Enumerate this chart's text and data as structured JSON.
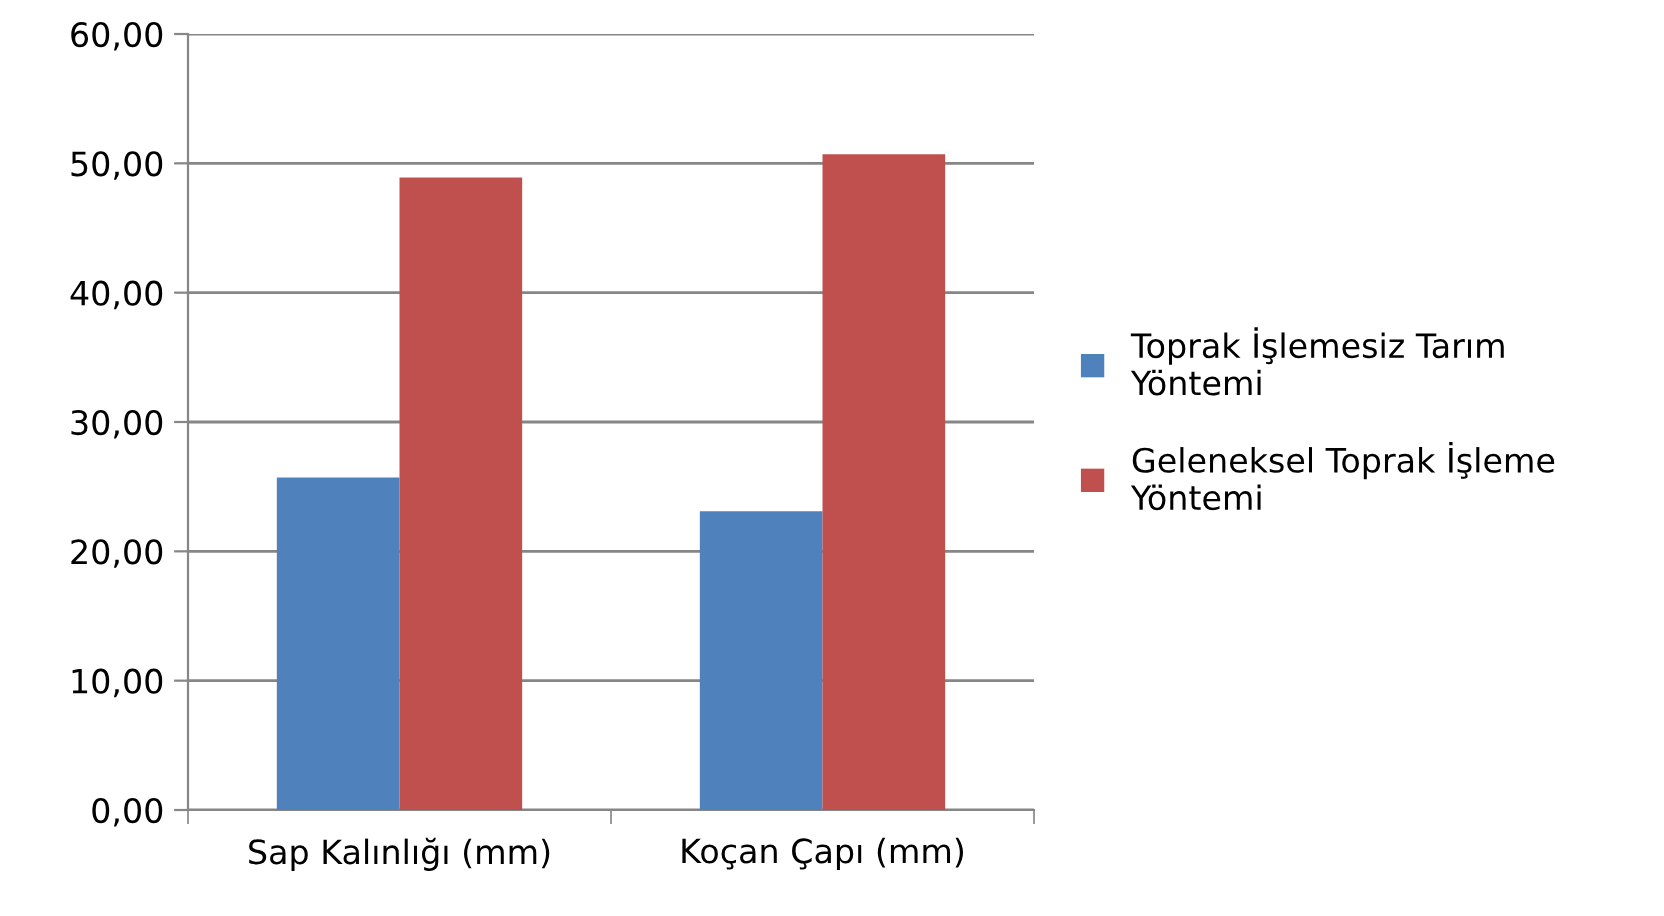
{
  "chart_data": {
    "type": "bar",
    "categories": [
      "Sap Kalınlığı (mm)",
      "Koçan Çapı (mm)"
    ],
    "series": [
      {
        "name": "Toprak İşlemesiz Tarım Yöntemi",
        "color": "#4f81bd",
        "values": [
          25.7,
          23.1
        ]
      },
      {
        "name": "Geleneksel Toprak İşleme Yöntemi",
        "color": "#c0504d",
        "values": [
          48.9,
          50.7
        ]
      }
    ],
    "ylim": [
      0,
      60
    ],
    "yticks": [
      {
        "value": 0,
        "label": "0,00"
      },
      {
        "value": 10,
        "label": "10,00"
      },
      {
        "value": 20,
        "label": "20,00"
      },
      {
        "value": 30,
        "label": "30,00"
      },
      {
        "value": 40,
        "label": "40,00"
      },
      {
        "value": 50,
        "label": "50,00"
      },
      {
        "value": 60,
        "label": "60,00"
      }
    ],
    "grid": "y",
    "legend": "right"
  }
}
